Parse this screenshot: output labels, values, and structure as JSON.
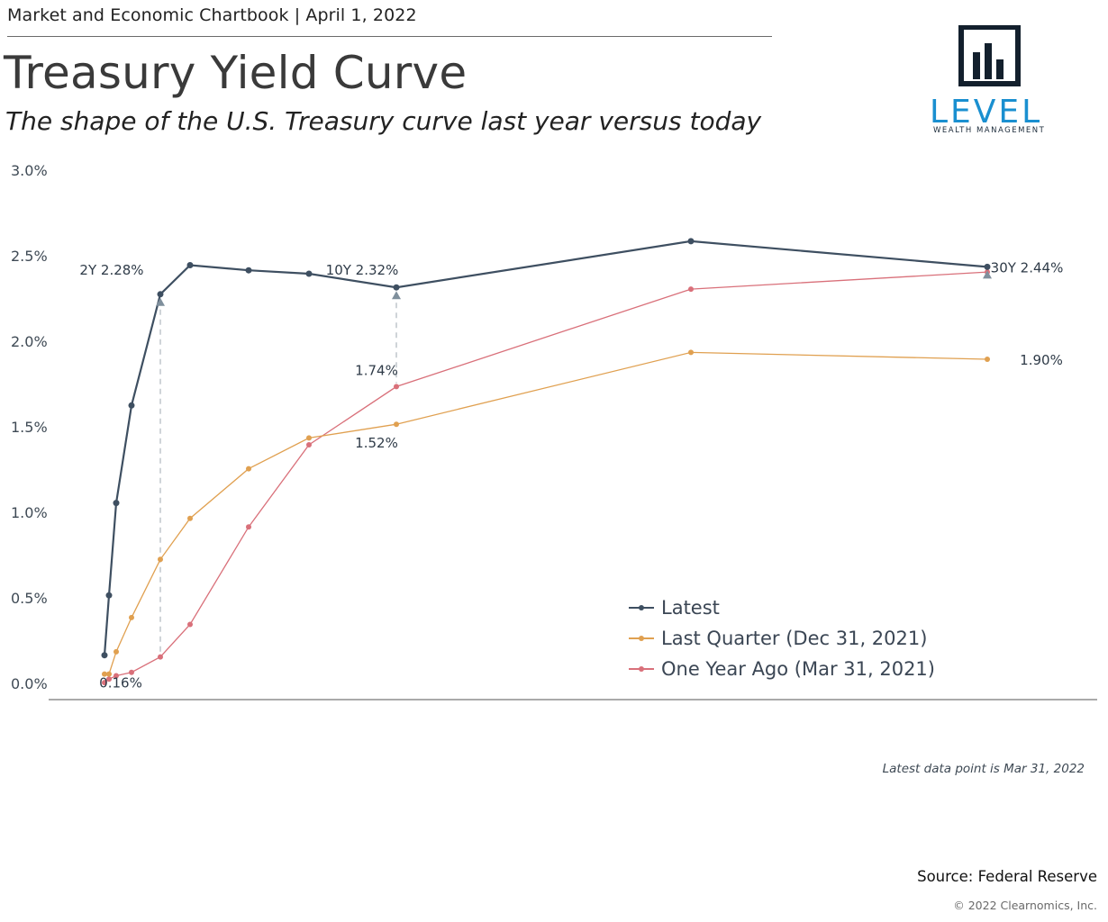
{
  "header": {
    "top_label": "Market and Economic Chartbook | April 1, 2022",
    "title": "Treasury Yield Curve",
    "subtitle": "The shape of the U.S. Treasury curve last year versus today"
  },
  "logo": {
    "word": "LEVEL",
    "sub": "WEALTH MANAGEMENT"
  },
  "chart_data": {
    "type": "line",
    "title": "Treasury Yield Curve",
    "ylabel": "",
    "xlabel": "",
    "ylim": [
      0,
      3
    ],
    "yticks": [
      "0.0%",
      "0.5%",
      "1.0%",
      "1.5%",
      "2.0%",
      "2.5%",
      "3.0%"
    ],
    "x_maturity_years": [
      0.083,
      0.25,
      0.5,
      1,
      2,
      3,
      5,
      7,
      10,
      20,
      30
    ],
    "x_positions": [
      116,
      121,
      129,
      146,
      178,
      211,
      276,
      343,
      440,
      767,
      1096
    ],
    "series": [
      {
        "name": "Latest",
        "color": "#3e4f61",
        "values": [
          0.17,
          0.52,
          1.06,
          1.63,
          2.28,
          2.45,
          2.42,
          2.4,
          2.32,
          2.59,
          2.44
        ]
      },
      {
        "name": "Last Quarter (Dec 31, 2021)",
        "color": "#e0a050",
        "values": [
          0.06,
          0.06,
          0.19,
          0.39,
          0.73,
          0.97,
          1.26,
          1.44,
          1.52,
          1.94,
          1.9
        ]
      },
      {
        "name": "One Year Ago (Mar 31, 2021)",
        "color": "#d9707a",
        "values": [
          0.01,
          0.03,
          0.05,
          0.07,
          0.16,
          0.35,
          0.92,
          1.4,
          1.74,
          2.31,
          2.41
        ]
      }
    ],
    "annotations": [
      {
        "text": "2Y 2.28%",
        "series": 0,
        "index": 4,
        "dx": -54,
        "dy": -22
      },
      {
        "text": "10Y 2.32%",
        "series": 0,
        "index": 8,
        "dx": -38,
        "dy": -14
      },
      {
        "text": "30Y 2.44%",
        "series": 0,
        "index": 10,
        "dx": 44,
        "dy": 6
      },
      {
        "text": "1.74%",
        "series": 2,
        "index": 8,
        "dx": -22,
        "dy": -13
      },
      {
        "text": "1.52%",
        "series": 1,
        "index": 8,
        "dx": -22,
        "dy": 26
      },
      {
        "text": "1.90%",
        "series": 1,
        "index": 10,
        "dx": 60,
        "dy": 6
      },
      {
        "text": "0.16%",
        "series": 2,
        "index": 4,
        "dx": -44,
        "dy": 34
      }
    ],
    "drop_lines": [
      {
        "index": 4,
        "top_series": 0,
        "bottom_series": 2
      },
      {
        "index": 8,
        "top_series": 0,
        "bottom_series": 2
      }
    ],
    "legend": [
      "Latest",
      "Last Quarter (Dec 31, 2021)",
      "One Year Ago (Mar 31, 2021)"
    ]
  },
  "note": "Latest data point is Mar 31, 2022",
  "source": "Source: Federal Reserve",
  "copyright": "© 2022 Clearnomics, Inc."
}
